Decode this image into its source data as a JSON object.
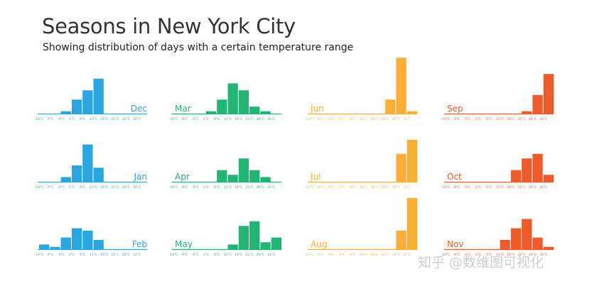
{
  "title": "Seasons in New York City",
  "subtitle": "Showing distribution of days with a certain temperature range",
  "watermark": "知乎 @数维图可视化",
  "chart_data": {
    "type": "bar",
    "layout": "small-multiples",
    "tick_labels": [
      "-14°C",
      "-9°C",
      "-4°C",
      "1°C",
      "6°C",
      "11°C",
      "16°C",
      "21°C",
      "26°C",
      "31°C"
    ],
    "ylim": [
      0,
      25
    ],
    "series": [
      {
        "name": "Dec",
        "color": "#29a6df",
        "values": [
          0,
          0,
          1,
          6,
          10,
          15,
          0,
          0,
          0,
          0
        ]
      },
      {
        "name": "Jan",
        "color": "#29a6df",
        "values": [
          0,
          0,
          2,
          7,
          16,
          6,
          0,
          0,
          0,
          0
        ]
      },
      {
        "name": "Feb",
        "color": "#29a6df",
        "values": [
          2,
          1,
          5,
          9,
          8,
          4,
          0,
          0,
          0,
          0
        ]
      },
      {
        "name": "Mar",
        "color": "#21b473",
        "values": [
          0,
          0,
          0,
          1,
          6,
          13,
          10,
          3,
          1,
          0
        ]
      },
      {
        "name": "Apr",
        "color": "#21b473",
        "values": [
          0,
          0,
          0,
          0,
          5,
          3,
          10,
          5,
          2,
          0
        ]
      },
      {
        "name": "May",
        "color": "#21b473",
        "values": [
          0,
          0,
          0,
          0,
          0,
          2,
          10,
          12,
          3,
          5
        ]
      },
      {
        "name": "Jun",
        "color": "#fbae36",
        "values": [
          0,
          0,
          0,
          0,
          0,
          0,
          0,
          6,
          24,
          1
        ]
      },
      {
        "name": "Jul",
        "color": "#fbae36",
        "values": [
          0,
          0,
          0,
          0,
          0,
          0,
          0,
          0,
          12,
          18
        ]
      },
      {
        "name": "Aug",
        "color": "#fbae36",
        "values": [
          0,
          0,
          0,
          0,
          0,
          0,
          0,
          0,
          8,
          22
        ]
      },
      {
        "name": "Sep",
        "color": "#f05a28",
        "values": [
          0,
          0,
          0,
          0,
          0,
          0,
          0,
          1,
          8,
          17
        ]
      },
      {
        "name": "Oct",
        "color": "#f05a28",
        "values": [
          0,
          0,
          0,
          0,
          0,
          0,
          5,
          10,
          12,
          3
        ]
      },
      {
        "name": "Nov",
        "color": "#f05a28",
        "values": [
          0,
          0,
          0,
          0,
          0,
          4,
          9,
          13,
          5,
          1
        ]
      }
    ]
  }
}
